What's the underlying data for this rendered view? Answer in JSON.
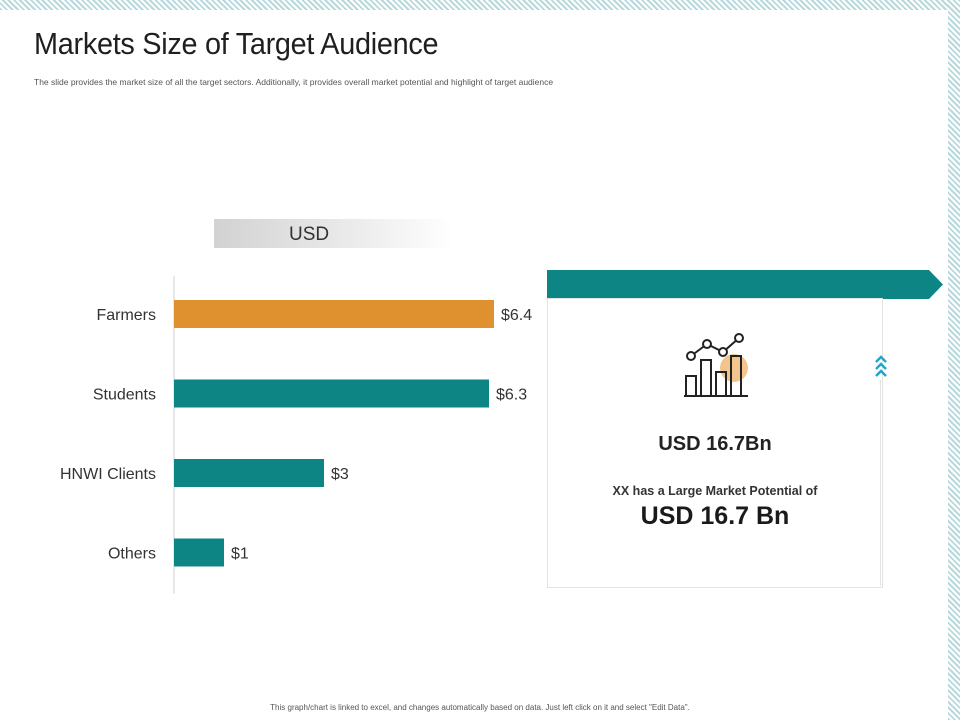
{
  "page": {
    "title": "Markets Size of Target Audience",
    "subtitle": "The slide provides the market size of all the target sectors. Additionally, it provides overall market potential and highlight of target audience",
    "footnote": "This graph/chart is linked to excel, and changes automatically based on data. Just left click on it and select \"Edit Data\"."
  },
  "usd_tag": {
    "label": "USD"
  },
  "chart_data": {
    "type": "bar",
    "orientation": "horizontal",
    "title": "USD",
    "categories": [
      "Farmers",
      "Students",
      "HNWI Clients",
      "Others"
    ],
    "values": [
      6.4,
      6.3,
      3,
      1
    ],
    "value_labels": [
      "$6.4",
      "$6.3",
      "$3",
      "$1"
    ],
    "xlim": [
      0,
      6.4
    ],
    "xlabel": "",
    "ylabel": "",
    "grid": false,
    "colors": [
      "#e0912f",
      "#0e8585",
      "#0e8585",
      "#0e8585"
    ]
  },
  "highlight": {
    "value": "USD 16.7Bn",
    "description": "XX has a Large Market Potential of",
    "potential": "USD 16.7 Bn"
  },
  "colors": {
    "teal": "#0e8585",
    "orange": "#e0912f",
    "icon_circle": "#f2c58f"
  },
  "icons": {
    "chart": "bar-chart-growth-icon",
    "arrows": "chevron-up-double-icon"
  }
}
